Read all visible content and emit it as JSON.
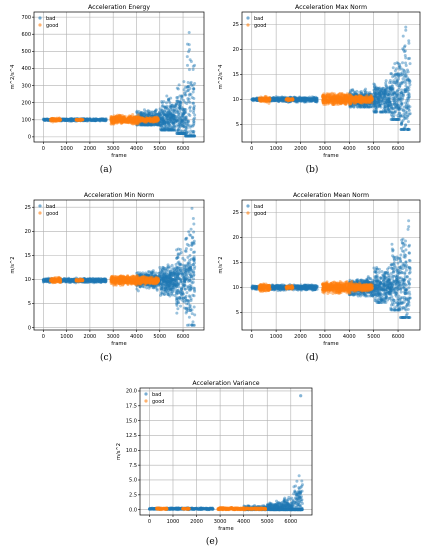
{
  "colors": {
    "bad": "#1f77b4",
    "good": "#ff7f0e",
    "grid": "#b0b0b0"
  },
  "chart_data": [
    {
      "type": "scatter",
      "caption": "(a)",
      "title": "Acceleration Energy",
      "xlabel": "frame",
      "ylabel": "m^2/s^4",
      "xlim": [
        -400,
        6900
      ],
      "ylim": [
        -30,
        730
      ],
      "xticks": [
        0,
        1000,
        2000,
        3000,
        4000,
        5000,
        6000
      ],
      "yticks": [
        0,
        100,
        200,
        300,
        400,
        500,
        600,
        700
      ],
      "base": 100,
      "legend": "top-left",
      "grid": true,
      "series": [
        {
          "name": "bad",
          "segments": [
            {
              "x": [
                0,
                450
              ],
              "spread": [
                95,
                108
              ]
            },
            {
              "x": [
                700,
                2700
              ],
              "spread": [
                92,
                110
              ]
            },
            {
              "x": [
                4000,
                5000
              ],
              "spread": [
                70,
                170
              ]
            },
            {
              "x": [
                5000,
                5700
              ],
              "spread": [
                40,
                260
              ]
            },
            {
              "x": [
                5700,
                6100
              ],
              "spread": [
                20,
                400
              ]
            },
            {
              "x": [
                6100,
                6500
              ],
              "spread": [
                5,
                700
              ]
            }
          ]
        },
        {
          "name": "good",
          "segments": [
            {
              "x": [
                300,
                750
              ],
              "spread": [
                85,
                115
              ]
            },
            {
              "x": [
                1400,
                1700
              ],
              "spread": [
                92,
                105
              ]
            },
            {
              "x": [
                2900,
                4100
              ],
              "spread": [
                75,
                135
              ]
            },
            {
              "x": [
                4100,
                4950
              ],
              "spread": [
                85,
                120
              ]
            }
          ]
        }
      ]
    },
    {
      "type": "scatter",
      "caption": "(b)",
      "title": "Acceleration Max Norm",
      "xlabel": "frame",
      "ylabel": "m^2/s^4",
      "xlim": [
        -400,
        6900
      ],
      "ylim": [
        1.5,
        27.5
      ],
      "xticks": [
        0,
        1000,
        2000,
        3000,
        4000,
        5000,
        6000
      ],
      "yticks": [
        5,
        10,
        15,
        20,
        25
      ],
      "base": 10,
      "legend": "top-left",
      "grid": true,
      "series": [
        {
          "name": "bad",
          "segments": [
            {
              "x": [
                0,
                450
              ],
              "spread": [
                9.6,
                10.4
              ]
            },
            {
              "x": [
                700,
                2700
              ],
              "spread": [
                9.4,
                10.6
              ]
            },
            {
              "x": [
                4000,
                5000
              ],
              "spread": [
                8.5,
                12.5
              ]
            },
            {
              "x": [
                5000,
                5700
              ],
              "spread": [
                7.5,
                15
              ]
            },
            {
              "x": [
                5700,
                6100
              ],
              "spread": [
                6,
                20
              ]
            },
            {
              "x": [
                6100,
                6500
              ],
              "spread": [
                4,
                27
              ]
            }
          ]
        },
        {
          "name": "good",
          "segments": [
            {
              "x": [
                300,
                750
              ],
              "spread": [
                9.2,
                10.8
              ]
            },
            {
              "x": [
                1400,
                1700
              ],
              "spread": [
                9.6,
                10.4
              ]
            },
            {
              "x": [
                2900,
                4100
              ],
              "spread": [
                9,
                11.5
              ]
            },
            {
              "x": [
                4100,
                4950
              ],
              "spread": [
                9.2,
                11
              ]
            }
          ]
        }
      ]
    },
    {
      "type": "scatter",
      "caption": "(c)",
      "title": "Acceleration Min Norm",
      "xlabel": "frame",
      "ylabel": "m/s^2",
      "xlim": [
        -400,
        6900
      ],
      "ylim": [
        -0.5,
        26.5
      ],
      "xticks": [
        0,
        1000,
        2000,
        3000,
        4000,
        5000,
        6000
      ],
      "yticks": [
        0,
        5,
        10,
        15,
        20,
        25
      ],
      "base": 9.8,
      "legend": "top-left",
      "grid": true,
      "series": [
        {
          "name": "bad",
          "segments": [
            {
              "x": [
                0,
                450
              ],
              "spread": [
                9.3,
                10.3
              ]
            },
            {
              "x": [
                700,
                2700
              ],
              "spread": [
                9.2,
                10.4
              ]
            },
            {
              "x": [
                4000,
                5000
              ],
              "spread": [
                7.5,
                12
              ]
            },
            {
              "x": [
                5000,
                5700
              ],
              "spread": [
                6,
                14
              ]
            },
            {
              "x": [
                5700,
                6100
              ],
              "spread": [
                3,
                18
              ]
            },
            {
              "x": [
                6100,
                6500
              ],
              "spread": [
                0.5,
                25.5
              ]
            }
          ]
        },
        {
          "name": "good",
          "segments": [
            {
              "x": [
                300,
                750
              ],
              "spread": [
                9,
                10.5
              ]
            },
            {
              "x": [
                1400,
                1700
              ],
              "spread": [
                9.4,
                10.2
              ]
            },
            {
              "x": [
                2900,
                4100
              ],
              "spread": [
                8.5,
                11
              ]
            },
            {
              "x": [
                4100,
                4950
              ],
              "spread": [
                8.8,
                10.8
              ]
            }
          ]
        }
      ]
    },
    {
      "type": "scatter",
      "caption": "(d)",
      "title": "Acceleration Mean Norm",
      "xlabel": "frame",
      "ylabel": "m/s^2",
      "xlim": [
        -400,
        6900
      ],
      "ylim": [
        1.5,
        27.5
      ],
      "xticks": [
        0,
        1000,
        2000,
        3000,
        4000,
        5000,
        6000
      ],
      "yticks": [
        5,
        10,
        15,
        20,
        25
      ],
      "base": 10,
      "legend": "top-left",
      "grid": true,
      "series": [
        {
          "name": "bad",
          "segments": [
            {
              "x": [
                0,
                450
              ],
              "spread": [
                9.5,
                10.4
              ]
            },
            {
              "x": [
                700,
                2700
              ],
              "spread": [
                9.3,
                10.6
              ]
            },
            {
              "x": [
                4000,
                5000
              ],
              "spread": [
                8.3,
                12.5
              ]
            },
            {
              "x": [
                5000,
                5700
              ],
              "spread": [
                7,
                15
              ]
            },
            {
              "x": [
                5700,
                6100
              ],
              "spread": [
                5.5,
                20
              ]
            },
            {
              "x": [
                6100,
                6500
              ],
              "spread": [
                4,
                27
              ]
            }
          ]
        },
        {
          "name": "good",
          "segments": [
            {
              "x": [
                300,
                750
              ],
              "spread": [
                9,
                10.8
              ]
            },
            {
              "x": [
                1400,
                1700
              ],
              "spread": [
                9.5,
                10.4
              ]
            },
            {
              "x": [
                2900,
                4100
              ],
              "spread": [
                8.8,
                11.5
              ]
            },
            {
              "x": [
                4100,
                4950
              ],
              "spread": [
                9,
                11
              ]
            }
          ]
        }
      ]
    },
    {
      "type": "scatter",
      "caption": "(e)",
      "title": "Acceleration Variance",
      "xlabel": "frame",
      "ylabel": "m/s^2",
      "xlim": [
        -400,
        6900
      ],
      "ylim": [
        -0.9,
        20.5
      ],
      "xticks": [
        0,
        1000,
        2000,
        3000,
        4000,
        5000,
        6000
      ],
      "yticks": [
        0.0,
        2.5,
        5.0,
        7.5,
        10.0,
        12.5,
        15.0,
        17.5,
        20.0
      ],
      "ytick_decimals": 1,
      "base": 0.15,
      "legend": "top-left",
      "grid": true,
      "series": [
        {
          "name": "bad",
          "segments": [
            {
              "x": [
                0,
                450
              ],
              "spread": [
                0,
                0.3
              ]
            },
            {
              "x": [
                700,
                2700
              ],
              "spread": [
                0,
                0.35
              ]
            },
            {
              "x": [
                4000,
                5000
              ],
              "spread": [
                0,
                0.8
              ]
            },
            {
              "x": [
                5000,
                5700
              ],
              "spread": [
                0,
                1.6
              ]
            },
            {
              "x": [
                5700,
                6100
              ],
              "spread": [
                0,
                2.8
              ]
            },
            {
              "x": [
                6100,
                6500
              ],
              "spread": [
                0,
                6.5
              ]
            }
          ]
        },
        {
          "name": "good",
          "segments": [
            {
              "x": [
                300,
                750
              ],
              "spread": [
                0,
                0.4
              ]
            },
            {
              "x": [
                1400,
                1700
              ],
              "spread": [
                0,
                0.25
              ]
            },
            {
              "x": [
                2900,
                4100
              ],
              "spread": [
                0,
                0.5
              ]
            },
            {
              "x": [
                4100,
                4950
              ],
              "spread": [
                0,
                0.4
              ]
            }
          ]
        }
      ],
      "outliers": [
        {
          "series": "bad",
          "x": 6420,
          "y": 19.2
        }
      ]
    }
  ]
}
